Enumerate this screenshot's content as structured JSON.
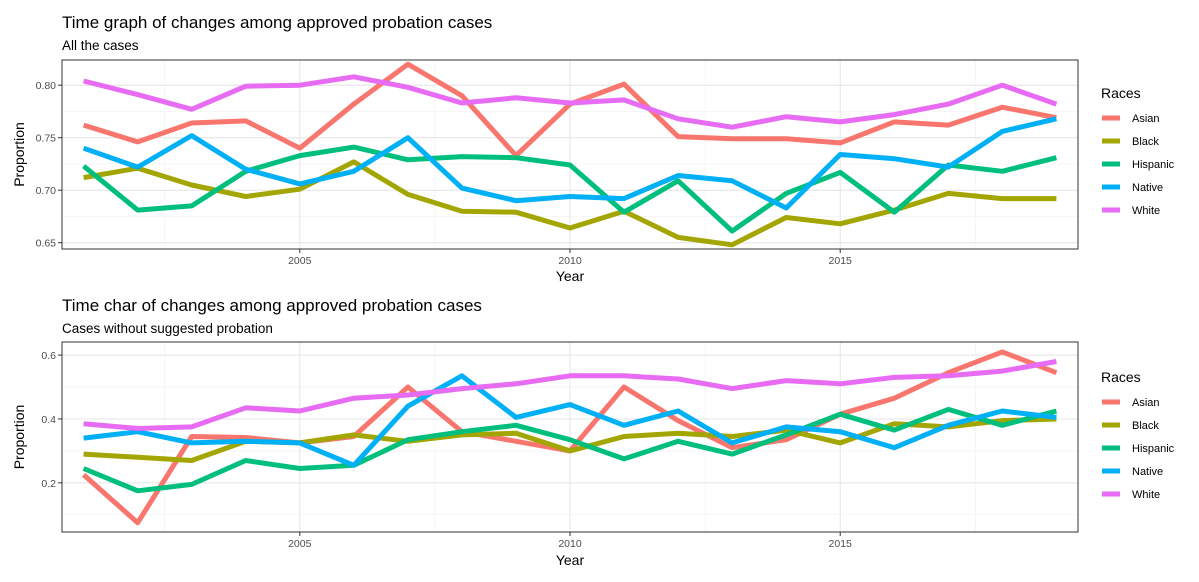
{
  "chart_data": [
    {
      "type": "line",
      "title": "Time graph of changes among approved probation cases",
      "subtitle": "All the cases",
      "xlabel": "Year",
      "ylabel": "Proportion",
      "xlim": [
        2000.6,
        2019.4
      ],
      "ylim": [
        0.644,
        0.824
      ],
      "xticks": [
        2005,
        2010,
        2015
      ],
      "xtick_labels": [
        "2005",
        "2010",
        "2015"
      ],
      "yticks": [
        0.65,
        0.7,
        0.75,
        0.8
      ],
      "ytick_labels": [
        "0.65",
        "0.70",
        "0.75",
        "0.80"
      ],
      "grid": true,
      "legend_title": "Races",
      "legend_position": "right",
      "x": [
        2001,
        2002,
        2003,
        2004,
        2005,
        2006,
        2007,
        2008,
        2009,
        2010,
        2011,
        2012,
        2013,
        2014,
        2015,
        2016,
        2017,
        2018,
        2019
      ],
      "series": [
        {
          "name": "Asian",
          "color": "#F8766D",
          "values": [
            0.762,
            0.746,
            0.764,
            0.766,
            0.74,
            0.782,
            0.82,
            0.79,
            0.733,
            0.782,
            0.801,
            0.751,
            0.749,
            0.749,
            0.745,
            0.765,
            0.762,
            0.779,
            0.769
          ]
        },
        {
          "name": "Black",
          "color": "#A3A500",
          "values": [
            0.712,
            0.721,
            0.705,
            0.694,
            0.701,
            0.727,
            0.696,
            0.68,
            0.679,
            0.664,
            0.68,
            0.655,
            0.648,
            0.674,
            0.668,
            0.681,
            0.697,
            0.692,
            0.692
          ]
        },
        {
          "name": "Hispanic",
          "color": "#00BF7D",
          "values": [
            0.723,
            0.681,
            0.685,
            0.718,
            0.733,
            0.741,
            0.729,
            0.732,
            0.731,
            0.724,
            0.679,
            0.709,
            0.661,
            0.697,
            0.717,
            0.679,
            0.724,
            0.718,
            0.731
          ]
        },
        {
          "name": "Native",
          "color": "#00B0F6",
          "values": [
            0.74,
            0.722,
            0.752,
            0.72,
            0.706,
            0.718,
            0.75,
            0.702,
            0.69,
            0.694,
            0.692,
            0.714,
            0.709,
            0.683,
            0.734,
            0.73,
            0.722,
            0.756,
            0.768
          ]
        },
        {
          "name": "White",
          "color": "#E76BF3",
          "values": [
            0.804,
            0.791,
            0.777,
            0.799,
            0.8,
            0.808,
            0.798,
            0.783,
            0.788,
            0.783,
            0.786,
            0.768,
            0.76,
            0.77,
            0.765,
            0.772,
            0.782,
            0.8,
            0.782
          ]
        }
      ]
    },
    {
      "type": "line",
      "title": "Time char of changes among approved probation cases",
      "subtitle": "Cases without suggested probation",
      "xlabel": "Year",
      "ylabel": "Proportion",
      "xlim": [
        2000.6,
        2019.4
      ],
      "ylim": [
        0.046,
        0.641
      ],
      "xticks": [
        2005,
        2010,
        2015
      ],
      "xtick_labels": [
        "2005",
        "2010",
        "2015"
      ],
      "yticks": [
        0.2,
        0.4,
        0.6
      ],
      "ytick_labels": [
        "0.2",
        "0.4",
        "0.6"
      ],
      "grid": true,
      "legend_title": "Races",
      "legend_position": "right",
      "x": [
        2001,
        2002,
        2003,
        2004,
        2005,
        2006,
        2007,
        2008,
        2009,
        2010,
        2011,
        2012,
        2013,
        2014,
        2015,
        2016,
        2017,
        2018,
        2019
      ],
      "series": [
        {
          "name": "Asian",
          "color": "#F8766D",
          "values": [
            0.225,
            0.075,
            0.345,
            0.342,
            0.325,
            0.345,
            0.5,
            0.36,
            0.33,
            0.3,
            0.5,
            0.395,
            0.31,
            0.335,
            0.415,
            0.465,
            0.545,
            0.61,
            0.545
          ]
        },
        {
          "name": "Black",
          "color": "#A3A500",
          "values": [
            0.29,
            0.28,
            0.27,
            0.33,
            0.325,
            0.35,
            0.33,
            0.35,
            0.355,
            0.3,
            0.345,
            0.355,
            0.345,
            0.365,
            0.325,
            0.385,
            0.375,
            0.395,
            0.4
          ]
        },
        {
          "name": "Hispanic",
          "color": "#00BF7D",
          "values": [
            0.245,
            0.175,
            0.195,
            0.27,
            0.245,
            0.255,
            0.335,
            0.36,
            0.38,
            0.335,
            0.275,
            0.33,
            0.29,
            0.35,
            0.415,
            0.365,
            0.43,
            0.38,
            0.425
          ]
        },
        {
          "name": "Native",
          "color": "#00B0F6",
          "values": [
            0.34,
            0.36,
            0.325,
            0.33,
            0.325,
            0.255,
            0.44,
            0.535,
            0.405,
            0.445,
            0.38,
            0.425,
            0.325,
            0.375,
            0.36,
            0.31,
            0.38,
            0.425,
            0.405
          ]
        },
        {
          "name": "White",
          "color": "#E76BF3",
          "values": [
            0.385,
            0.37,
            0.375,
            0.435,
            0.425,
            0.465,
            0.475,
            0.495,
            0.51,
            0.535,
            0.535,
            0.525,
            0.495,
            0.52,
            0.51,
            0.53,
            0.535,
            0.55,
            0.58
          ]
        }
      ]
    }
  ]
}
